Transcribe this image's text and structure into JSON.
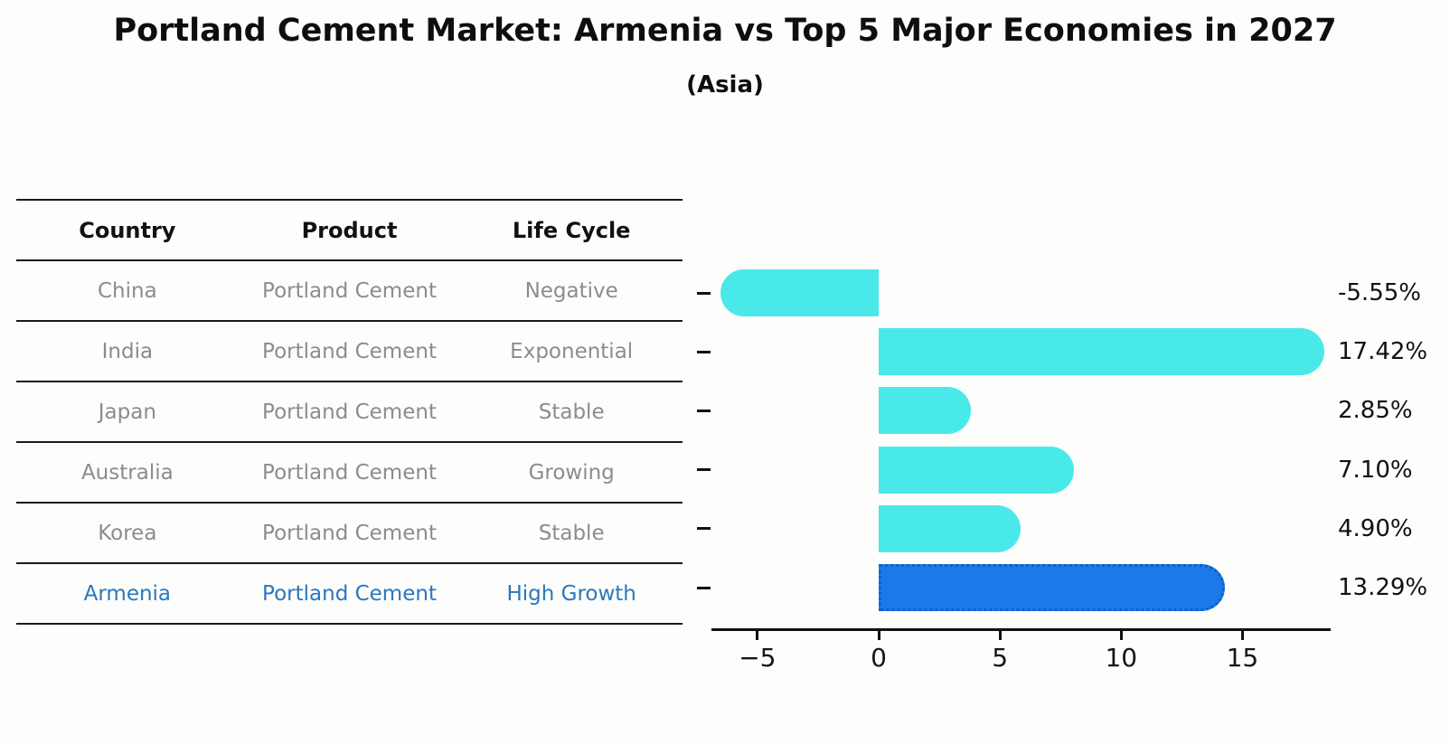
{
  "header": {
    "title": "Portland Cement Market: Armenia vs Top 5 Major Economies in 2027",
    "subtitle": "(Asia)"
  },
  "table": {
    "headers": [
      "Country",
      "Product",
      "Life Cycle"
    ],
    "rows": [
      {
        "country": "China",
        "product": "Portland Cement",
        "life_cycle": "Negative",
        "highlight": false
      },
      {
        "country": "India",
        "product": "Portland Cement",
        "life_cycle": "Exponential",
        "highlight": false
      },
      {
        "country": "Japan",
        "product": "Portland Cement",
        "life_cycle": "Stable",
        "highlight": false
      },
      {
        "country": "Australia",
        "product": "Portland Cement",
        "life_cycle": "Growing",
        "highlight": false
      },
      {
        "country": "Korea",
        "product": "Portland Cement",
        "life_cycle": "Stable",
        "highlight": false
      },
      {
        "country": "Armenia",
        "product": "Portland Cement",
        "life_cycle": "High Growth",
        "highlight": true
      }
    ],
    "text_color": "#8c8c8c",
    "highlight_text_color": "#2878be",
    "line_color": "#1a1a1a"
  },
  "chart_data": {
    "type": "bar",
    "orientation": "horizontal",
    "title": "Portland Cement Market: Armenia vs Top 5 Major Economies in 2027",
    "subtitle": "(Asia)",
    "categories": [
      "China",
      "India",
      "Japan",
      "Australia",
      "Korea",
      "Armenia"
    ],
    "values": [
      -5.55,
      17.42,
      2.85,
      7.1,
      4.9,
      13.29
    ],
    "value_labels": [
      "-5.55%",
      "17.42%",
      "2.85%",
      "7.10%",
      "4.90%",
      "13.29%"
    ],
    "highlight_index": 5,
    "bar_color": "#4ae9e9",
    "highlight_bar_color": "#1b7ae8",
    "highlight_border_color": "#0d5ed1",
    "xlim": [
      -6.9,
      18.6
    ],
    "x_ticks": [
      -5,
      0,
      5,
      10,
      15
    ],
    "x_tick_labels": [
      "−5",
      "0",
      "5",
      "10",
      "15"
    ],
    "xlabel": "",
    "ylabel": "",
    "grid": false,
    "legend": false
  }
}
